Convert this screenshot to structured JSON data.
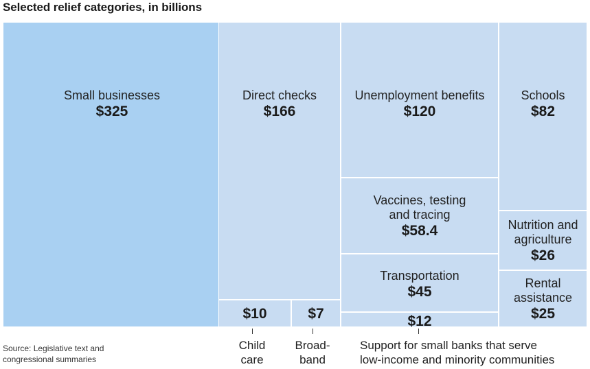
{
  "title": "Selected relief categories, in billions",
  "source": {
    "line1": "Source: Legislative text and",
    "line2": "congressional summaries"
  },
  "colors": {
    "highlight": "#a9d0f2",
    "tile": "#c8dcf2",
    "border": "#ffffff",
    "text": "#222222"
  },
  "chart_data": {
    "type": "treemap",
    "title": "Selected relief categories, in billions",
    "unit": "billions of dollars",
    "items": [
      {
        "id": "small_businesses",
        "label_lines": [
          "Small businesses"
        ],
        "value_label": "$325",
        "value": 325
      },
      {
        "id": "direct_checks",
        "label_lines": [
          "Direct checks"
        ],
        "value_label": "$166",
        "value": 166
      },
      {
        "id": "unemployment",
        "label_lines": [
          "Unemployment benefits"
        ],
        "value_label": "$120",
        "value": 120
      },
      {
        "id": "schools",
        "label_lines": [
          "Schools"
        ],
        "value_label": "$82",
        "value": 82
      },
      {
        "id": "vaccines",
        "label_lines": [
          "Vaccines, testing",
          "and tracing"
        ],
        "value_label": "$58.4",
        "value": 58.4
      },
      {
        "id": "transportation",
        "label_lines": [
          "Transportation"
        ],
        "value_label": "$45",
        "value": 45
      },
      {
        "id": "nutrition",
        "label_lines": [
          "Nutrition and",
          "agriculture"
        ],
        "value_label": "$26",
        "value": 26
      },
      {
        "id": "rental",
        "label_lines": [
          "Rental",
          "assistance"
        ],
        "value_label": "$25",
        "value": 25
      },
      {
        "id": "small_banks",
        "label_lines": [],
        "value_label": "$12",
        "value": 12,
        "callout_lines": [
          "Support for small banks that serve",
          "low-income and minority communities"
        ]
      },
      {
        "id": "child_care",
        "label_lines": [],
        "value_label": "$10",
        "value": 10,
        "callout_lines": [
          "Child",
          "care"
        ]
      },
      {
        "id": "broadband",
        "label_lines": [],
        "value_label": "$7",
        "value": 7,
        "callout_lines": [
          "Broad-",
          "band"
        ]
      }
    ]
  }
}
